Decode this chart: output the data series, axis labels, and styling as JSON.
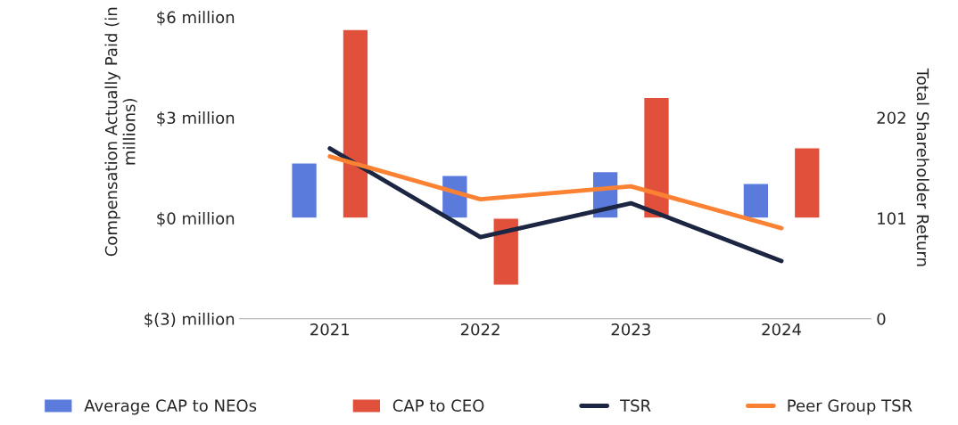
{
  "chart_data": {
    "type": "bar",
    "ylabel": "Compensation Actually Paid (in millions)",
    "y2label": "Total Shareholder Return",
    "categories": [
      "2021",
      "2022",
      "2023",
      "2024"
    ],
    "series": [
      {
        "name": "Average CAP to NEOs",
        "color": "#5a7bdc",
        "values": [
          1.65,
          1.28,
          1.39,
          1.04
        ]
      },
      {
        "name": "CAP to CEO",
        "color": "#e0503a",
        "values": [
          5.63,
          -2.0,
          3.6,
          2.1
        ]
      },
      {
        "name": "TSR",
        "type": "line",
        "axis": "y2",
        "color": "#1c2541",
        "values": [
          171,
          82,
          116,
          58
        ]
      },
      {
        "name": "Peer Group TSR",
        "type": "line",
        "axis": "y2",
        "color": "#fb8233",
        "values": [
          163,
          120,
          133,
          91
        ]
      }
    ],
    "ylim": [
      -3,
      6
    ],
    "yticks": [
      {
        "value": -3,
        "label": "$(3) million"
      },
      {
        "value": 0,
        "label": "$0 million"
      },
      {
        "value": 3,
        "label": "$3 million"
      },
      {
        "value": 6,
        "label": "$6 million"
      }
    ],
    "y2lim": [
      0,
      303
    ],
    "y2ticks": [
      0,
      101,
      202
    ],
    "grid": false,
    "legend": "bottom"
  }
}
